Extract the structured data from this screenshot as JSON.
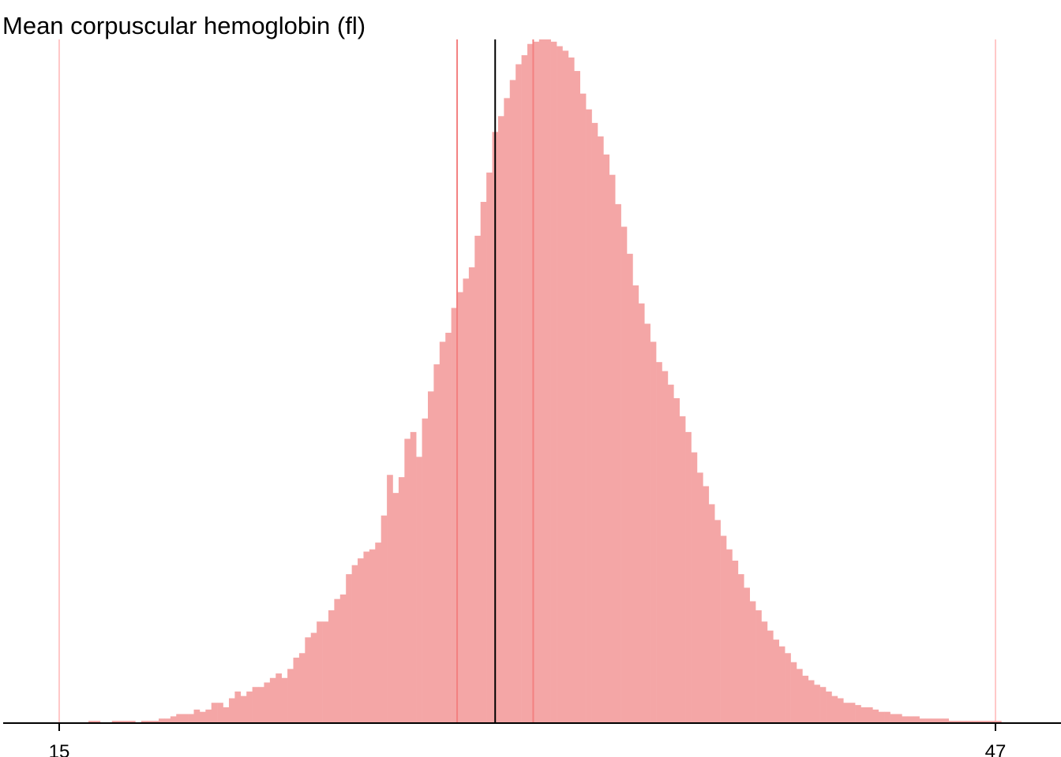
{
  "chart_data": {
    "type": "bar",
    "title": "Mean corpuscular hemoglobin (fl)",
    "xlabel": "",
    "ylabel": "",
    "xlim": [
      15,
      47
    ],
    "x_ticks": [
      15,
      47
    ],
    "x_tick_labels": [
      "15",
      "47"
    ],
    "bin_width": 0.2,
    "bin_start": 16,
    "values": [
      1,
      1,
      0,
      0,
      1,
      1,
      1,
      1,
      0,
      1,
      1,
      1,
      2,
      2,
      3,
      4,
      4,
      4,
      6,
      5,
      6,
      9,
      9,
      7,
      11,
      14,
      12,
      14,
      16,
      16,
      18,
      20,
      22,
      20,
      24,
      29,
      31,
      38,
      40,
      45,
      45,
      50,
      55,
      57,
      66,
      70,
      73,
      76,
      77,
      80,
      92,
      110,
      102,
      109,
      126,
      129,
      118,
      135,
      147,
      159,
      169,
      173,
      184,
      191,
      197,
      202,
      216,
      231,
      244,
      262,
      269,
      277,
      285,
      292,
      296,
      301,
      302,
      303,
      303,
      302,
      300,
      298,
      295,
      289,
      279,
      272,
      266,
      260,
      252,
      243,
      230,
      220,
      208,
      194,
      186,
      177,
      169,
      160,
      156,
      150,
      144,
      136,
      129,
      120,
      111,
      105,
      97,
      90,
      83,
      77,
      72,
      66,
      60,
      54,
      50,
      45,
      41,
      37,
      34,
      31,
      27,
      24,
      21,
      19,
      17,
      16,
      14,
      12,
      11,
      9,
      9,
      8,
      7,
      7,
      6,
      5,
      5,
      4,
      4,
      3,
      3,
      3,
      2,
      2,
      2,
      2,
      2,
      1,
      1,
      1,
      1,
      1,
      1,
      1,
      1,
      1
    ],
    "median": 29.9,
    "iqr": [
      28.6,
      31.2
    ],
    "range": [
      15,
      47
    ],
    "colors": {
      "bar": "#f4a6a6",
      "median_line": "#000000",
      "quartile_line": "#f38080",
      "range_line": "#ffc8c8",
      "axis": "#000000"
    }
  }
}
